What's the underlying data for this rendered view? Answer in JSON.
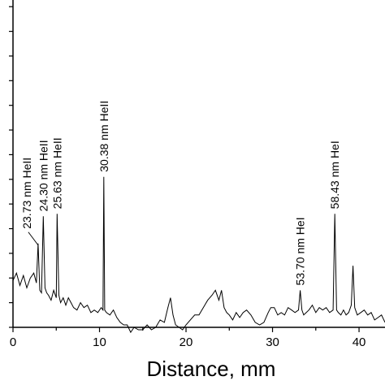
{
  "chart_data": {
    "type": "line",
    "title": "",
    "xlabel": "Distance, mm",
    "ylabel": "",
    "xlim": [
      0,
      43
    ],
    "ylim": [
      0,
      6.8
    ],
    "x_ticks": [
      0,
      10,
      20,
      30,
      40
    ],
    "x_tick_labels": [
      "0",
      "10",
      "20",
      "30",
      "40"
    ],
    "y_ticks": [
      0,
      0.5,
      1,
      1.5,
      2,
      2.5,
      3,
      3.5,
      4,
      4.5,
      5,
      5.5,
      6,
      6.5
    ],
    "grid": false,
    "series": [
      {
        "name": "",
        "x": [
          0.0,
          0.4,
          0.8,
          1.2,
          1.6,
          2.0,
          2.4,
          2.7,
          2.9,
          3.1,
          3.3,
          3.5,
          3.7,
          3.9,
          4.1,
          4.4,
          4.7,
          5.0,
          5.1,
          5.3,
          5.5,
          5.8,
          6.1,
          6.4,
          6.7,
          7.0,
          7.4,
          7.8,
          8.2,
          8.6,
          9.0,
          9.4,
          9.8,
          10.2,
          10.4,
          10.5,
          10.6,
          10.8,
          11.2,
          11.6,
          12.0,
          12.4,
          12.8,
          13.2,
          13.6,
          14.0,
          14.5,
          15.0,
          15.5,
          16.0,
          16.5,
          17.0,
          17.5,
          17.9,
          18.2,
          18.5,
          18.8,
          19.2,
          19.6,
          20.0,
          20.5,
          21.0,
          21.5,
          22.0,
          22.5,
          23.0,
          23.4,
          23.8,
          24.1,
          24.4,
          24.7,
          25.0,
          25.4,
          25.8,
          26.2,
          26.6,
          27.0,
          27.5,
          28.0,
          28.5,
          29.0,
          29.5,
          29.8,
          30.2,
          30.6,
          31.0,
          31.4,
          31.8,
          32.2,
          32.6,
          33.0,
          33.2,
          33.4,
          33.6,
          33.9,
          34.2,
          34.6,
          35.0,
          35.4,
          35.8,
          36.2,
          36.6,
          37.0,
          37.2,
          37.4,
          37.6,
          37.9,
          38.2,
          38.5,
          38.8,
          39.1,
          39.3,
          39.5,
          39.8,
          40.2,
          40.6,
          41.0,
          41.4,
          41.8,
          42.2,
          42.6,
          43.0
        ],
        "y": [
          0.95,
          1.1,
          0.85,
          1.05,
          0.8,
          1.0,
          1.1,
          0.9,
          1.7,
          0.75,
          0.7,
          2.25,
          0.8,
          0.7,
          0.65,
          0.55,
          0.75,
          0.6,
          2.3,
          0.65,
          0.5,
          0.6,
          0.45,
          0.6,
          0.5,
          0.4,
          0.35,
          0.5,
          0.4,
          0.45,
          0.3,
          0.35,
          0.3,
          0.4,
          0.35,
          3.05,
          0.35,
          0.3,
          0.25,
          0.35,
          0.2,
          0.1,
          0.05,
          0.05,
          -0.1,
          0.0,
          -0.05,
          -0.05,
          0.05,
          -0.05,
          0.0,
          0.15,
          0.1,
          0.4,
          0.6,
          0.25,
          0.05,
          0.0,
          -0.05,
          0.05,
          0.15,
          0.25,
          0.25,
          0.4,
          0.55,
          0.65,
          0.75,
          0.55,
          0.75,
          0.4,
          0.3,
          0.25,
          0.15,
          0.3,
          0.2,
          0.3,
          0.35,
          0.25,
          0.1,
          0.05,
          0.1,
          0.3,
          0.4,
          0.4,
          0.25,
          0.3,
          0.25,
          0.4,
          0.35,
          0.3,
          0.35,
          0.75,
          0.35,
          0.25,
          0.3,
          0.35,
          0.45,
          0.3,
          0.4,
          0.35,
          0.4,
          0.3,
          0.35,
          2.3,
          0.35,
          0.3,
          0.25,
          0.35,
          0.25,
          0.3,
          0.45,
          1.25,
          0.4,
          0.25,
          0.3,
          0.35,
          0.25,
          0.3,
          0.15,
          0.2,
          0.25,
          0.1
        ]
      }
    ],
    "annotations": [
      {
        "text": "23.73 nm HeII",
        "x": 2.9,
        "y": 1.7
      },
      {
        "text": "24.30 nm HeII",
        "x": 3.5,
        "y": 2.25
      },
      {
        "text": "25.63 nm HeII",
        "x": 5.1,
        "y": 2.3
      },
      {
        "text": "30.38 nm  HeII",
        "x": 10.5,
        "y": 3.05
      },
      {
        "text": "53.70 nm  HeI",
        "x": 33.2,
        "y": 0.75
      },
      {
        "text": "58.43 nm  HeI",
        "x": 37.2,
        "y": 2.3
      }
    ]
  }
}
